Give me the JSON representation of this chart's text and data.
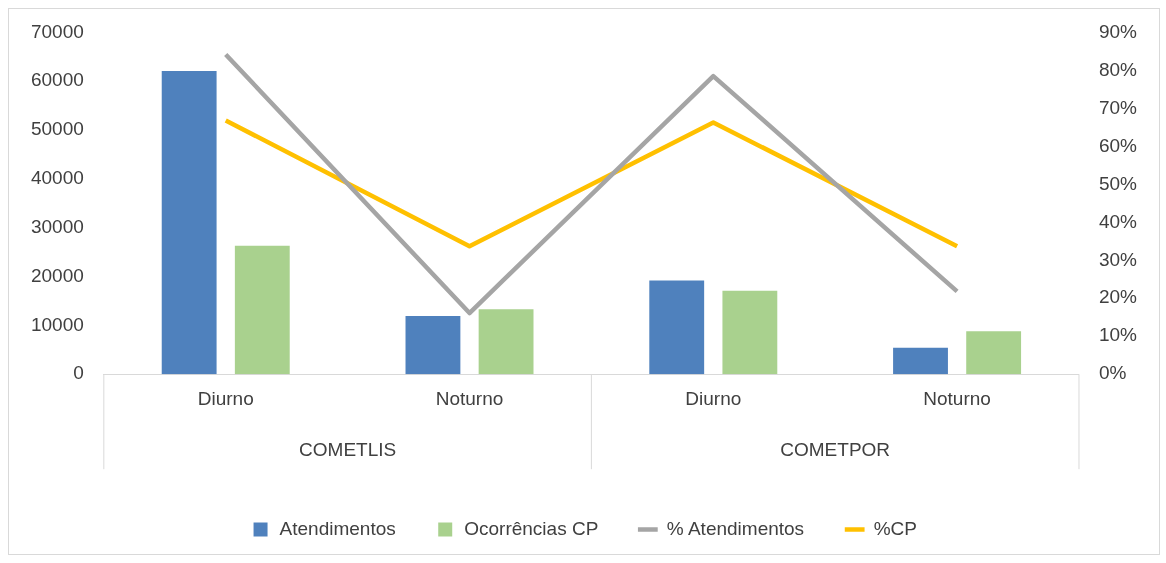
{
  "chart_data": {
    "type": "bar",
    "categories": [
      "Diurno",
      "Noturno",
      "Diurno",
      "Noturno"
    ],
    "series": [
      {
        "name": "Atendimentos",
        "color": "#4f81bd",
        "values": [
          62100,
          11900,
          19200,
          5400
        ]
      },
      {
        "name": "Ocorrências CP",
        "color": "#a9d18e",
        "values": [
          26300,
          13300,
          17100,
          8800
        ]
      },
      {
        "name": "% Atendimentos",
        "type": "line",
        "axis": "y2",
        "color": "#a5a5a5",
        "values": [
          84.2,
          16.1,
          78.5,
          21.8
        ]
      },
      {
        "name": "%CP",
        "type": "line",
        "axis": "y2",
        "color": "#ffc000",
        "values": [
          66.8,
          33.7,
          66.3,
          33.7
        ]
      }
    ],
    "ylim": [
      0,
      70000
    ],
    "yticks": [
      0,
      10000,
      20000,
      30000,
      40000,
      50000,
      60000,
      70000
    ],
    "y2lim": [
      0,
      90
    ],
    "y2ticks": [
      {
        "value": 0,
        "label": "0%"
      },
      {
        "value": 10,
        "label": "10%"
      },
      {
        "value": 20,
        "label": "20%"
      },
      {
        "value": 30,
        "label": "30%"
      },
      {
        "value": 40,
        "label": "40%"
      },
      {
        "value": 50,
        "label": "50%"
      },
      {
        "value": 60,
        "label": "60%"
      },
      {
        "value": 70,
        "label": "70%"
      },
      {
        "value": 80,
        "label": "80%"
      },
      {
        "value": 90,
        "label": "90%"
      }
    ],
    "annotations": [
      "COMETLIS",
      "COMETPOR"
    ],
    "legend": "bottom",
    "grid": false,
    "marker": "none"
  }
}
